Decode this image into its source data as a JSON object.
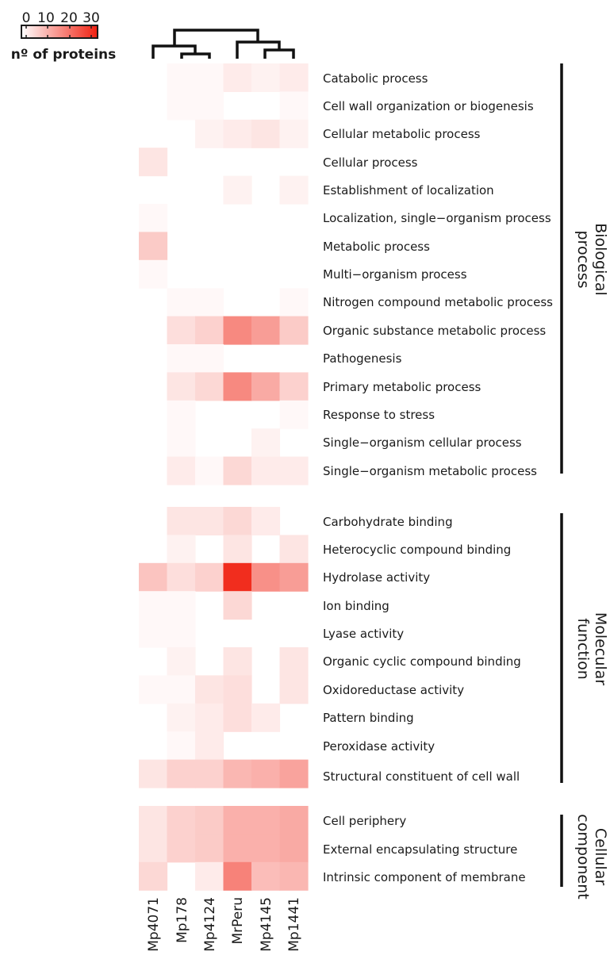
{
  "chart_data": {
    "type": "heatmap",
    "columns": [
      "Mp4071",
      "Mp178",
      "Mp4124",
      "MrPeru",
      "Mp4145",
      "Mp1441"
    ],
    "legend": {
      "title": "nº of proteins",
      "ticks": [
        "0",
        "10",
        "20",
        "30"
      ],
      "range": [
        0,
        34
      ],
      "low_color": "#ffffff",
      "high_color": "#f02010"
    },
    "groups": [
      {
        "name": "Biological process",
        "label_lines": [
          "Biological",
          "process"
        ],
        "rows": [
          {
            "label": "Catabolic process",
            "values": [
              0,
              1,
              1,
              3,
              2,
              3
            ]
          },
          {
            "label": "Cell wall organization or biogenesis",
            "values": [
              0,
              1,
              1,
              0,
              0,
              1
            ]
          },
          {
            "label": "Cellular metabolic process",
            "values": [
              0,
              0,
              2,
              3,
              4,
              2
            ]
          },
          {
            "label": "Cellular process",
            "values": [
              4,
              0,
              0,
              0,
              0,
              0
            ]
          },
          {
            "label": "Establishment of localization",
            "values": [
              0,
              0,
              0,
              2,
              0,
              2
            ]
          },
          {
            "label": "Localization, single−organism process",
            "values": [
              1,
              0,
              0,
              0,
              0,
              0
            ]
          },
          {
            "label": "Metabolic process",
            "values": [
              8,
              0,
              0,
              0,
              0,
              0
            ]
          },
          {
            "label": "Multi−organism process",
            "values": [
              1,
              0,
              0,
              0,
              0,
              0
            ]
          },
          {
            "label": "Nitrogen compound metabolic process",
            "values": [
              0,
              1,
              1,
              0,
              0,
              1
            ]
          },
          {
            "label": "Organic substance metabolic process",
            "values": [
              0,
              5,
              7,
              18,
              15,
              8
            ]
          },
          {
            "label": "Pathogenesis",
            "values": [
              0,
              1,
              1,
              0,
              0,
              0
            ]
          },
          {
            "label": "Primary metabolic process",
            "values": [
              0,
              4,
              6,
              18,
              13,
              7
            ]
          },
          {
            "label": "Response to stress",
            "values": [
              0,
              1,
              0,
              0,
              0,
              1
            ]
          },
          {
            "label": "Single−organism cellular process",
            "values": [
              0,
              1,
              0,
              0,
              2,
              0
            ]
          },
          {
            "label": "Single−organism metabolic process",
            "values": [
              0,
              3,
              1,
              6,
              3,
              3
            ]
          }
        ]
      },
      {
        "name": "Molecular function",
        "label_lines": [
          "Molecular",
          "function"
        ],
        "rows": [
          {
            "label": "Carbohydrate binding",
            "values": [
              0,
              4,
              4,
              6,
              3,
              0
            ]
          },
          {
            "label": "Heterocyclic compound binding",
            "values": [
              0,
              2,
              0,
              4,
              0,
              4
            ]
          },
          {
            "label": "Hydrolase activity",
            "values": [
              9,
              5,
              7,
              32,
              17,
              15
            ]
          },
          {
            "label": "Ion binding",
            "values": [
              1,
              1,
              0,
              6,
              0,
              0
            ]
          },
          {
            "label": "Lyase activity",
            "values": [
              1,
              1,
              0,
              0,
              0,
              0
            ]
          },
          {
            "label": "Organic cyclic compound binding",
            "values": [
              0,
              2,
              0,
              4,
              0,
              4
            ]
          },
          {
            "label": "Oxidoreductase activity",
            "values": [
              1,
              1,
              4,
              5,
              0,
              4
            ]
          },
          {
            "label": "Pattern binding",
            "values": [
              0,
              2,
              3,
              5,
              3,
              0
            ]
          },
          {
            "label": "Peroxidase activity",
            "values": [
              0,
              1,
              3,
              0,
              0,
              0
            ]
          },
          {
            "label": "Structural constituent of cell wall",
            "values": [
              4,
              7,
              7,
              11,
              12,
              14
            ]
          }
        ]
      },
      {
        "name": "Cellular component",
        "label_lines": [
          "Cellular",
          "component"
        ],
        "rows": [
          {
            "label": "Cell periphery",
            "values": [
              4,
              7,
              8,
              12,
              12,
              13
            ]
          },
          {
            "label": "External encapsulating structure",
            "values": [
              4,
              7,
              8,
              12,
              12,
              13
            ]
          },
          {
            "label": "Intrinsic component of membrane",
            "values": [
              6,
              0,
              3,
              19,
              10,
              11
            ]
          }
        ]
      }
    ]
  }
}
